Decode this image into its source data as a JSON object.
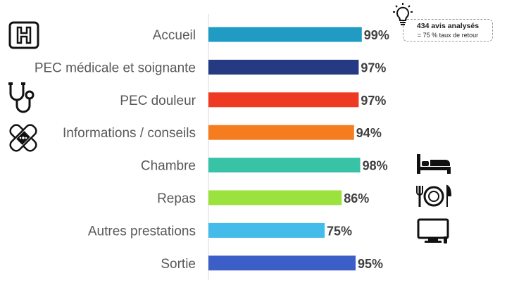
{
  "chart_data": {
    "type": "bar",
    "orientation": "horizontal",
    "categories": [
      "Accueil",
      "PEC médicale et soignante",
      "PEC douleur",
      "Informations / conseils",
      "Chambre",
      "Repas",
      "Autres prestations",
      "Sortie"
    ],
    "values": [
      99,
      97,
      97,
      94,
      98,
      86,
      75,
      95
    ],
    "value_labels": [
      "99%",
      "97%",
      "97%",
      "94%",
      "98%",
      "86%",
      "75%",
      "95%"
    ],
    "colors": [
      "#1f9bc4",
      "#263a84",
      "#ef3a23",
      "#f57d20",
      "#39c3a6",
      "#9be23f",
      "#44bce9",
      "#3c5ec7"
    ],
    "xlim": [
      0,
      100
    ],
    "grid": false,
    "legend": "none",
    "title": "",
    "xlabel": "",
    "ylabel": ""
  },
  "note": {
    "main": "434 avis analysés",
    "sub": "= 75 % taux de retour"
  },
  "icons": [
    "hospital-sign-icon",
    "stethoscope-icon",
    "bandage-icon",
    "lightbulb-icon",
    "bed-icon",
    "meal-icon",
    "tv-icon"
  ]
}
